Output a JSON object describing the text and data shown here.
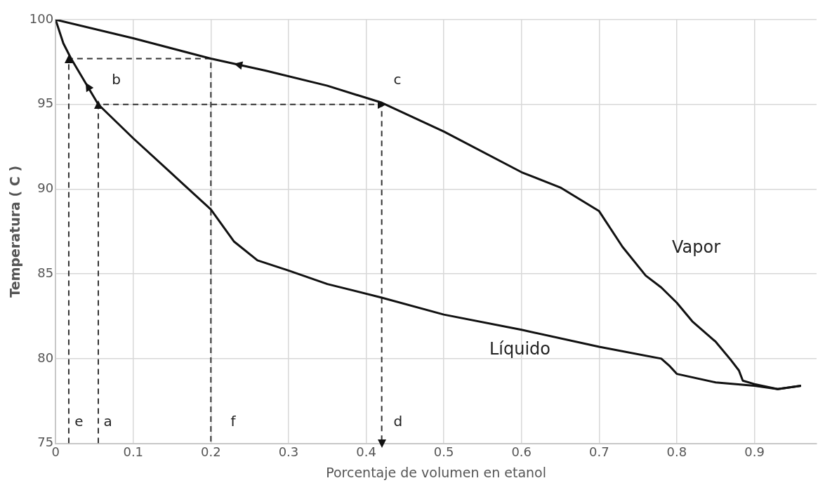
{
  "chart_data": {
    "type": "line",
    "xlabel": "Porcentaje de volumen en etanol",
    "ylabel": "Temperatura ( C )",
    "xlim": [
      0,
      0.98
    ],
    "xticks": [
      0,
      0.1,
      0.2,
      0.3,
      0.4,
      0.5,
      0.6,
      0.7,
      0.8,
      0.9
    ],
    "ylim": [
      75,
      100
    ],
    "yticks": [
      75,
      80,
      85,
      90,
      95,
      100
    ],
    "grid": true,
    "legend": false,
    "series": [
      {
        "name": "Vapor",
        "color": "#111111",
        "line_style": "solid",
        "x": [
          0,
          0.1,
          0.2,
          0.27,
          0.35,
          0.42,
          0.5,
          0.6,
          0.65,
          0.7,
          0.73,
          0.76,
          0.78,
          0.8,
          0.82,
          0.85,
          0.87,
          0.88,
          0.885,
          0.9,
          0.93,
          0.96
        ],
        "values": [
          100,
          98.9,
          97.7,
          97.0,
          96.1,
          95.1,
          93.4,
          91.0,
          90.1,
          88.7,
          86.6,
          84.9,
          84.2,
          83.3,
          82.2,
          81.0,
          79.9,
          79.3,
          78.7,
          78.5,
          78.2,
          78.4
        ]
      },
      {
        "name": "Líquido",
        "color": "#111111",
        "line_style": "solid",
        "x": [
          0,
          0.01,
          0.02,
          0.055,
          0.1,
          0.15,
          0.2,
          0.23,
          0.26,
          0.3,
          0.35,
          0.42,
          0.5,
          0.6,
          0.7,
          0.78,
          0.79,
          0.8,
          0.85,
          0.9,
          0.93,
          0.96
        ],
        "values": [
          100,
          98.6,
          97.7,
          95.0,
          93.0,
          90.9,
          88.8,
          86.9,
          85.8,
          85.2,
          84.4,
          83.6,
          82.6,
          81.7,
          80.7,
          80.0,
          79.6,
          79.1,
          78.6,
          78.4,
          78.2,
          78.4
        ]
      },
      {
        "color": "#333333",
        "line_style": "dashed",
        "x": [
          0.017,
          0.017,
          0.2,
          0.2
        ],
        "values": [
          75,
          97.7,
          97.7,
          75
        ]
      },
      {
        "color": "#333333",
        "line_style": "dashed",
        "x": [
          0.055,
          0.055,
          0.42,
          0.42
        ],
        "values": [
          75,
          95,
          95,
          75
        ]
      }
    ],
    "annotations": [
      "a",
      "b",
      "c",
      "d",
      "e",
      "f"
    ]
  }
}
